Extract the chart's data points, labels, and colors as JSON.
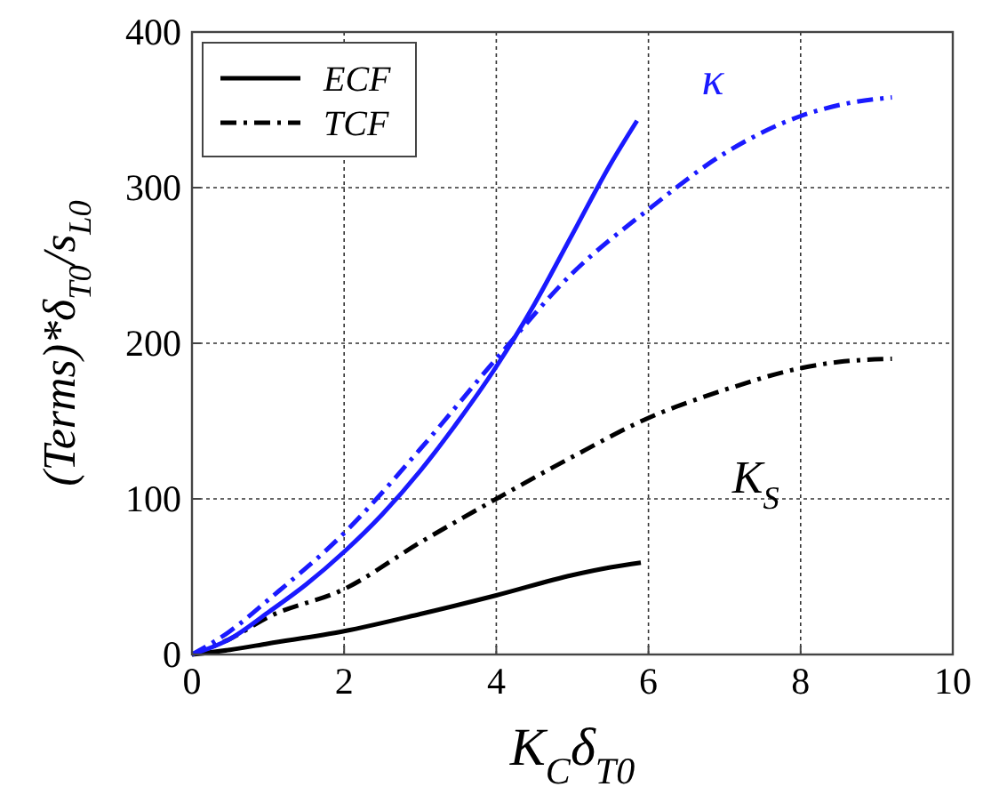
{
  "chart_data": {
    "type": "line",
    "xlabel": "K$_{C}$δ$_{T0}$",
    "ylabel": "(Terms)*δ$_{T0}$/s$_{L0}$",
    "xlim": [
      0,
      10
    ],
    "ylim": [
      0,
      400
    ],
    "xticks": [
      0,
      2,
      4,
      6,
      8,
      10
    ],
    "yticks": [
      0,
      100,
      200,
      300,
      400
    ],
    "grid": true,
    "legend": "top left",
    "series": [
      {
        "name": "ECF",
        "color": "#000000",
        "line_style": "solid",
        "x": [
          0,
          0.5,
          1,
          2,
          3,
          4,
          5,
          5.5,
          5.9
        ],
        "values": [
          0,
          3,
          7,
          15,
          26,
          38,
          51,
          56,
          59
        ]
      },
      {
        "name": "TCF",
        "color": "#000000",
        "line_style": "dashdot",
        "x": [
          0,
          0.5,
          1,
          2,
          3,
          4,
          5,
          6,
          7,
          8,
          8.5,
          9.2
        ],
        "values": [
          0,
          10,
          24,
          42,
          72,
          100,
          127,
          152,
          170,
          184,
          188,
          190
        ]
      },
      {
        "color": "#1a1aff",
        "line_style": "solid",
        "x": [
          0,
          0.5,
          1,
          1.5,
          2,
          2.5,
          3,
          3.5,
          4,
          4.5,
          5,
          5.5,
          5.85
        ],
        "values": [
          0,
          10,
          27,
          45,
          66,
          90,
          118,
          150,
          185,
          225,
          270,
          315,
          343
        ]
      },
      {
        "color": "#1a1aff",
        "line_style": "dashdot",
        "x": [
          0,
          0.5,
          1,
          2,
          3,
          4,
          5,
          6,
          7,
          8,
          8.5,
          9.2
        ],
        "values": [
          0,
          15,
          35,
          78,
          132,
          190,
          245,
          286,
          322,
          346,
          353,
          358
        ]
      }
    ],
    "annotations": [
      "κ",
      "K$_{S}$"
    ]
  }
}
